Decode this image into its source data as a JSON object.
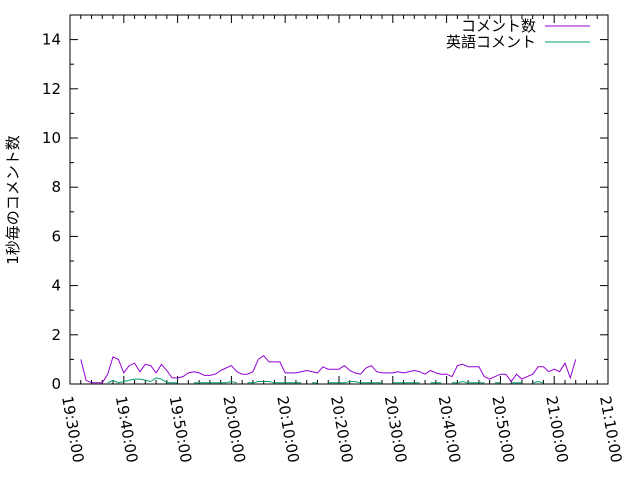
{
  "chart_data": {
    "type": "line",
    "title": "",
    "xlabel": "",
    "ylabel": "1秒毎のコメント数",
    "ylim": [
      0,
      15
    ],
    "xlim": [
      "19:30:00",
      "21:10:00"
    ],
    "yticks": [
      "0",
      "2",
      "4",
      "6",
      "8",
      "10",
      "12",
      "14"
    ],
    "xticks": [
      "19:30:00",
      "19:40:00",
      "19:50:00",
      "20:00:00",
      "20:10:00",
      "20:20:00",
      "20:30:00",
      "20:40:00",
      "20:50:00",
      "21:00:00",
      "21:10:00"
    ],
    "grid": false,
    "legend_position": "top-right",
    "x": [
      "19:32",
      "19:33",
      "19:34",
      "19:35",
      "19:36",
      "19:37",
      "19:38",
      "19:39",
      "19:40",
      "19:41",
      "19:42",
      "19:43",
      "19:44",
      "19:45",
      "19:46",
      "19:47",
      "19:48",
      "19:49",
      "19:50",
      "19:51",
      "19:52",
      "19:53",
      "19:54",
      "19:55",
      "19:56",
      "19:57",
      "19:58",
      "19:59",
      "20:00",
      "20:01",
      "20:02",
      "20:03",
      "20:04",
      "20:05",
      "20:06",
      "20:07",
      "20:08",
      "20:09",
      "20:10",
      "20:11",
      "20:12",
      "20:13",
      "20:14",
      "20:15",
      "20:16",
      "20:17",
      "20:18",
      "20:19",
      "20:20",
      "20:21",
      "20:22",
      "20:23",
      "20:24",
      "20:25",
      "20:26",
      "20:27",
      "20:28",
      "20:29",
      "20:30",
      "20:31",
      "20:32",
      "20:33",
      "20:34",
      "20:35",
      "20:36",
      "20:37",
      "20:38",
      "20:39",
      "20:40",
      "20:41",
      "20:42",
      "20:43",
      "20:44",
      "20:45",
      "20:46",
      "20:47",
      "20:48",
      "20:49",
      "20:50",
      "20:51",
      "20:52",
      "20:53",
      "20:54",
      "20:55",
      "20:56",
      "20:57",
      "20:58",
      "20:59",
      "21:00",
      "21:01",
      "21:02",
      "21:03",
      "21:04"
    ],
    "series": [
      {
        "name": "コメント数",
        "color": "#9400d3",
        "values": [
          1.0,
          0.15,
          0.05,
          0.05,
          0.05,
          0.4,
          1.1,
          1.0,
          0.45,
          0.75,
          0.85,
          0.5,
          0.8,
          0.75,
          0.45,
          0.8,
          0.55,
          0.25,
          0.25,
          0.3,
          0.45,
          0.5,
          0.45,
          0.35,
          0.35,
          0.4,
          0.55,
          0.65,
          0.75,
          0.5,
          0.4,
          0.4,
          0.5,
          1.0,
          1.15,
          0.9,
          0.9,
          0.9,
          0.45,
          0.45,
          0.45,
          0.5,
          0.55,
          0.5,
          0.45,
          0.7,
          0.6,
          0.6,
          0.6,
          0.75,
          0.55,
          0.45,
          0.4,
          0.65,
          0.75,
          0.5,
          0.45,
          0.45,
          0.45,
          0.5,
          0.45,
          0.5,
          0.55,
          0.5,
          0.4,
          0.55,
          0.45,
          0.4,
          0.4,
          0.3,
          0.75,
          0.8,
          0.7,
          0.7,
          0.7,
          0.3,
          0.2,
          0.3,
          0.4,
          0.4,
          0.1,
          0.4,
          0.2,
          0.3,
          0.4,
          0.7,
          0.7,
          0.5,
          0.6,
          0.5,
          0.85,
          0.25,
          1.0
        ]
      },
      {
        "name": "英語コメント",
        "color": "#009e73",
        "values": [
          null,
          null,
          null,
          null,
          null,
          0.05,
          0.15,
          0.05,
          0.1,
          0.15,
          0.2,
          0.2,
          0.15,
          0.1,
          0.25,
          0.2,
          0.05,
          0.05,
          0.05,
          null,
          null,
          0.05,
          0.05,
          0.05,
          0.05,
          0.05,
          0.05,
          0.05,
          0.1,
          0.05,
          null,
          0.05,
          0.05,
          0.1,
          0.1,
          0.1,
          0.05,
          0.05,
          0.05,
          0.05,
          0.05,
          0.05,
          null,
          0.05,
          0.05,
          null,
          0.05,
          0.05,
          0.05,
          0.05,
          0.1,
          0.1,
          0.05,
          0.05,
          0.05,
          0.05,
          0.05,
          null,
          0.05,
          0.05,
          0.05,
          0.05,
          0.05,
          0.05,
          null,
          0.05,
          0.05,
          0.05,
          null,
          0.05,
          0.05,
          0.1,
          0.05,
          0.05,
          0.05,
          0.05,
          null,
          0.05,
          0.05,
          null,
          0.05,
          0.05,
          0.05,
          null,
          0.05,
          0.1,
          0.05,
          null,
          0.05,
          null,
          0.05,
          null,
          null
        ]
      }
    ]
  }
}
